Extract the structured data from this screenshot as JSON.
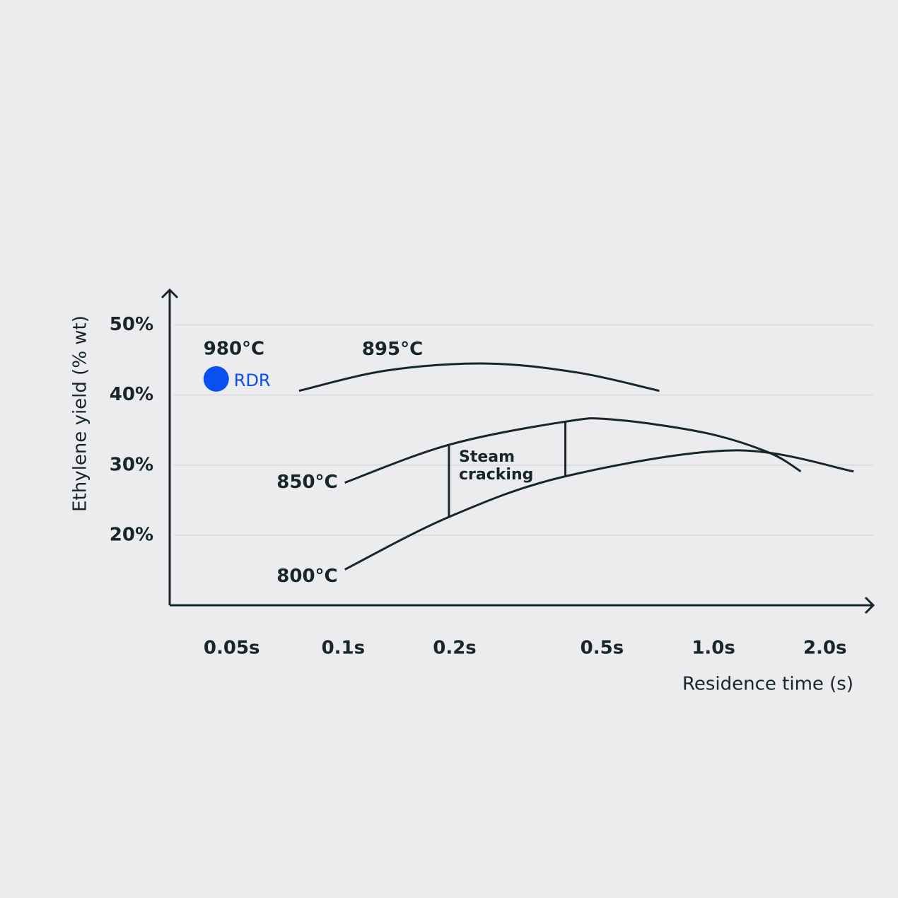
{
  "chart_data": {
    "type": "line",
    "x_label": "Residence time (s)",
    "y_label": "Ethylene yield (% wt)",
    "x_scale": "log",
    "xlim": [
      0.034,
      2.7
    ],
    "xticks": [
      {
        "value": 0.05,
        "label": "0.05s"
      },
      {
        "value": 0.1,
        "label": "0.1s"
      },
      {
        "value": 0.2,
        "label": "0.2s"
      },
      {
        "value": 0.5,
        "label": "0.5s"
      },
      {
        "value": 1.0,
        "label": "1.0s"
      },
      {
        "value": 2.0,
        "label": "2.0s"
      }
    ],
    "ylim": [
      10,
      55
    ],
    "yticks": [
      {
        "value": 20,
        "label": "20%"
      },
      {
        "value": 30,
        "label": "30%"
      },
      {
        "value": 40,
        "label": "40%"
      },
      {
        "value": 50,
        "label": "50%"
      }
    ],
    "grid": true,
    "series": [
      {
        "name": "895°C",
        "color": "#16262a",
        "x": [
          0.076,
          0.131,
          0.243,
          0.43,
          0.714
        ],
        "values": [
          40.6,
          43.5,
          44.5,
          43.2,
          40.6
        ]
      },
      {
        "name": "850°C",
        "color": "#16262a",
        "x": [
          0.101,
          0.193,
          0.398,
          0.537,
          0.95,
          1.41,
          1.72
        ],
        "values": [
          27.5,
          32.9,
          36.2,
          36.5,
          34.6,
          31.8,
          29.1
        ]
      },
      {
        "name": "800°C",
        "color": "#16262a",
        "x": [
          0.101,
          0.193,
          0.398,
          1.13,
          2.39
        ],
        "values": [
          15.1,
          22.6,
          28.4,
          32.1,
          29.1
        ]
      }
    ],
    "points": [
      {
        "name": "RDR",
        "label": "980°C",
        "color": "#0a4ff0",
        "x": [
          0.0454
        ],
        "values": [
          42.3
        ]
      }
    ],
    "annotation": [
      "Steam",
      "cracking"
    ]
  }
}
